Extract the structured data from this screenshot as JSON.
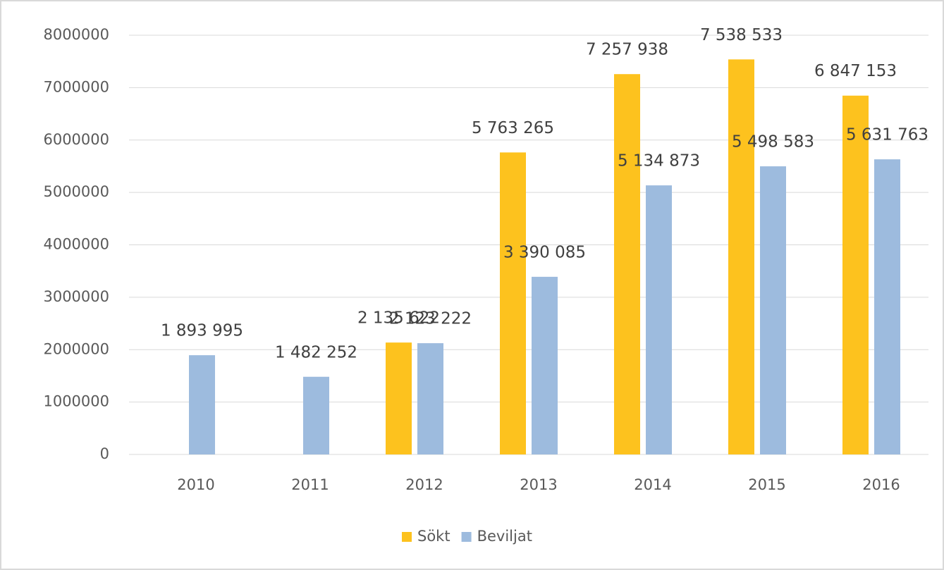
{
  "chart_data": {
    "type": "bar",
    "categories": [
      "2010",
      "2011",
      "2012",
      "2013",
      "2014",
      "2015",
      "2016"
    ],
    "series": [
      {
        "name": "Sökt",
        "color": "#fdc21e",
        "values": [
          null,
          null,
          2135622,
          5763265,
          7257938,
          7538533,
          6847153
        ],
        "value_labels": [
          null,
          null,
          "2 135 622",
          "5 763 265",
          "7 257 938",
          "7 538 533",
          "6 847 153"
        ]
      },
      {
        "name": "Beviljat",
        "color": "#9dbbde",
        "values": [
          1893995,
          1482252,
          2123222,
          3390085,
          5134873,
          5498583,
          5631763
        ],
        "value_labels": [
          "1 893 995",
          "1 482 252",
          "2 123 222",
          "3 390 085",
          "5 134 873",
          "5 498 583",
          "5 631 763"
        ]
      }
    ],
    "ylim": [
      0,
      8000000
    ],
    "yticks": [
      0,
      1000000,
      2000000,
      3000000,
      4000000,
      5000000,
      6000000,
      7000000,
      8000000
    ],
    "grid": true,
    "legend": "bottom"
  }
}
